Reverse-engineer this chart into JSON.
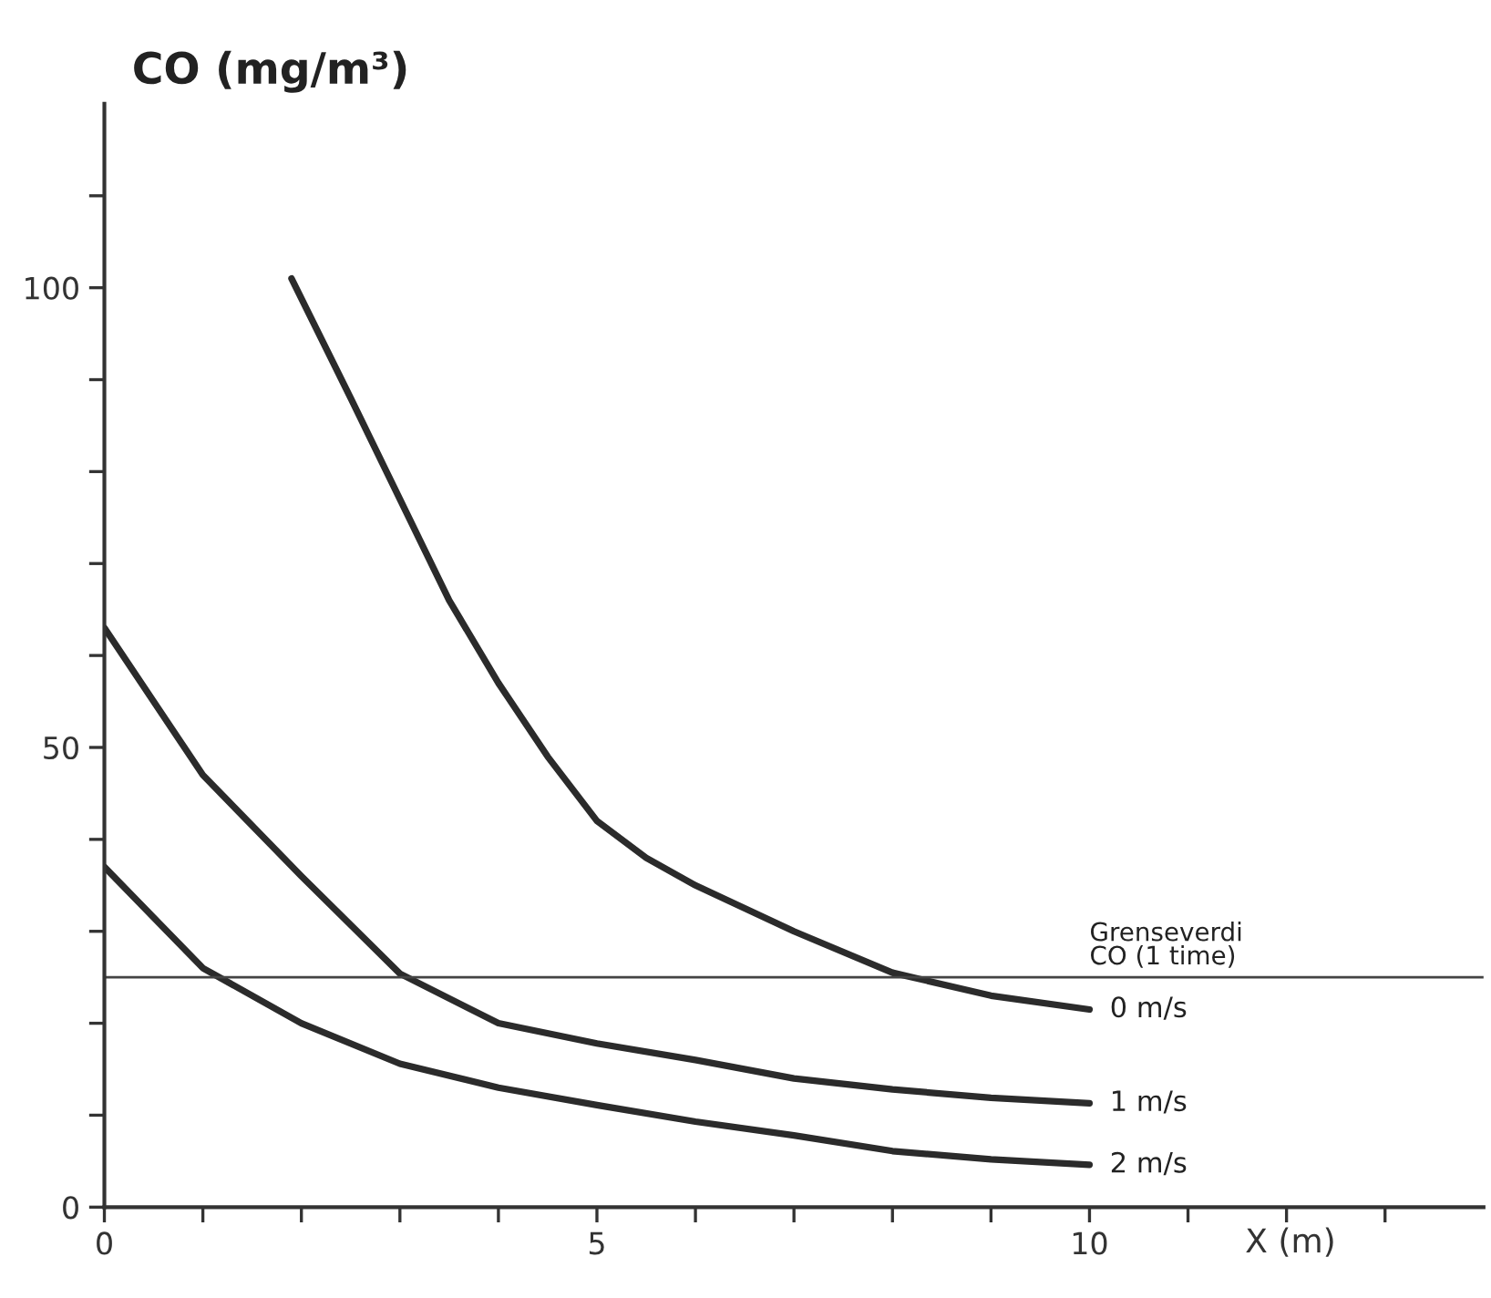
{
  "chart_data": {
    "type": "line",
    "ylabel": "CO (mg/m³)",
    "xlabel": "X (m)",
    "xlim": [
      0,
      14
    ],
    "ylim": [
      0,
      120
    ],
    "xticks": [
      0,
      {
        "value": 1,
        "label": null
      },
      {
        "value": 2,
        "label": null
      },
      {
        "value": 3,
        "label": null
      },
      {
        "value": 4,
        "label": null
      },
      5,
      {
        "value": 6,
        "label": null
      },
      {
        "value": 7,
        "label": null
      },
      {
        "value": 8,
        "label": null
      },
      {
        "value": 9,
        "label": null
      },
      10,
      {
        "value": 11,
        "label": null
      },
      {
        "value": 12,
        "label": null
      },
      {
        "value": 13,
        "label": null
      }
    ],
    "yticks": [
      0,
      {
        "value": 10,
        "label": null
      },
      {
        "value": 20,
        "label": null
      },
      {
        "value": 30,
        "label": null
      },
      {
        "value": 40,
        "label": null
      },
      50,
      {
        "value": 60,
        "label": null
      },
      {
        "value": 70,
        "label": null
      },
      {
        "value": 80,
        "label": null
      },
      {
        "value": 90,
        "label": null
      },
      100,
      {
        "value": 110,
        "label": null
      }
    ],
    "grid": false,
    "legend": false,
    "marker": "none",
    "line_style": "solid",
    "series": [
      {
        "name": "0 m/s",
        "color": "#2b2b2b",
        "x": [
          1.9,
          2.5,
          3,
          3.5,
          4,
          4.5,
          5,
          5.5,
          6,
          7,
          8,
          9,
          10
        ],
        "values": [
          101,
          88,
          77,
          66,
          57,
          49,
          42,
          38,
          35,
          30,
          25.5,
          23,
          21.5
        ]
      },
      {
        "name": "1 m/s",
        "color": "#2b2b2b",
        "x": [
          0,
          1,
          2,
          3,
          4,
          5,
          6,
          7,
          8,
          9,
          10
        ],
        "values": [
          63,
          47,
          36,
          25.4,
          20,
          17.8,
          16,
          14,
          12.8,
          11.9,
          11.3
        ]
      },
      {
        "name": "2 m/s",
        "color": "#2b2b2b",
        "x": [
          0,
          1,
          2,
          3,
          4,
          5,
          6,
          7,
          8,
          9,
          10
        ],
        "values": [
          37,
          26,
          20,
          15.6,
          13,
          11.1,
          9.3,
          7.8,
          6.1,
          5.2,
          4.6
        ]
      }
    ],
    "ref_lines": [
      {
        "axis": "y",
        "value": 25,
        "label": "Grenseverdi\nCO (1 time)",
        "color": "#444444",
        "line_style": "solid"
      }
    ]
  }
}
